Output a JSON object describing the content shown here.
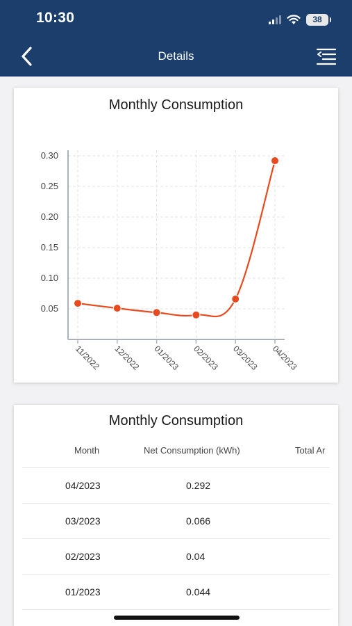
{
  "status_bar": {
    "time": "10:30",
    "battery": "38"
  },
  "header": {
    "title": "Details",
    "back_icon": "chevron-left-icon",
    "menu_icon": "menu-icon"
  },
  "chart_card": {
    "title": "Monthly Consumption",
    "chart_data": {
      "type": "line",
      "categories": [
        "11/2022",
        "12/2022",
        "01/2023",
        "02/2023",
        "03/2023",
        "04/2023"
      ],
      "values": [
        0.059,
        0.051,
        0.044,
        0.04,
        0.066,
        0.292
      ],
      "ylim": [
        0,
        0.3
      ],
      "yticks": [
        "0.30",
        "0.25",
        "0.20",
        "0.15",
        "0.10",
        "0.05"
      ],
      "xlabel": "",
      "ylabel": "",
      "grid": true,
      "line_color": "#e84a1f"
    }
  },
  "table_card": {
    "title": "Monthly Consumption",
    "columns": [
      "Month",
      "Net Consumption (kWh)",
      "Total Ar"
    ],
    "rows": [
      {
        "month": "04/2023",
        "net": "0.292"
      },
      {
        "month": "03/2023",
        "net": "0.066"
      },
      {
        "month": "02/2023",
        "net": "0.04"
      },
      {
        "month": "01/2023",
        "net": "0.044"
      }
    ]
  }
}
